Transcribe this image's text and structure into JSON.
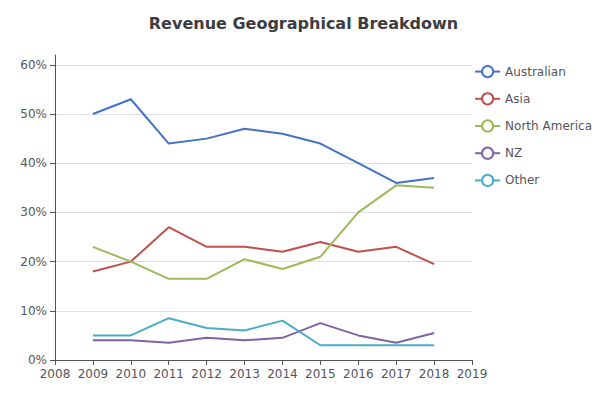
{
  "chart_data": {
    "type": "line",
    "title": "Revenue Geographical Breakdown",
    "x": [
      2009,
      2010,
      2011,
      2012,
      2013,
      2014,
      2015,
      2016,
      2017,
      2018
    ],
    "series": [
      {
        "name": "Australian",
        "color": "#4472C4",
        "values": [
          0.5,
          0.53,
          0.44,
          0.45,
          0.47,
          0.46,
          0.44,
          0.4,
          0.36,
          0.37
        ]
      },
      {
        "name": "Asia",
        "color": "#C0504D",
        "values": [
          0.18,
          0.2,
          0.27,
          0.23,
          0.23,
          0.22,
          0.24,
          0.22,
          0.23,
          0.195
        ]
      },
      {
        "name": "North America",
        "color": "#9BBB59",
        "values": [
          0.23,
          0.2,
          0.165,
          0.165,
          0.205,
          0.185,
          0.21,
          0.3,
          0.355,
          0.35
        ]
      },
      {
        "name": "NZ",
        "color": "#8064A2",
        "values": [
          0.04,
          0.04,
          0.035,
          0.045,
          0.04,
          0.045,
          0.075,
          0.05,
          0.035,
          0.055
        ]
      },
      {
        "name": "Other",
        "color": "#4BACC6",
        "values": [
          0.05,
          0.05,
          0.085,
          0.065,
          0.06,
          0.08,
          0.03,
          0.03,
          0.03,
          0.03
        ]
      }
    ],
    "xlim": [
      2008,
      2019
    ],
    "xticks": [
      2008,
      2009,
      2010,
      2011,
      2012,
      2013,
      2014,
      2015,
      2016,
      2017,
      2018,
      2019
    ],
    "ylim": [
      0.0,
      0.62
    ],
    "yticks": [
      {
        "value": 0.0,
        "label": "0%"
      },
      {
        "value": 0.1,
        "label": "10%"
      },
      {
        "value": 0.2,
        "label": "20%"
      },
      {
        "value": 0.3,
        "label": "30%"
      },
      {
        "value": 0.4,
        "label": "40%"
      },
      {
        "value": 0.5,
        "label": "50%"
      },
      {
        "value": 0.6,
        "label": "60%"
      }
    ],
    "grid": true,
    "legend": "right"
  }
}
